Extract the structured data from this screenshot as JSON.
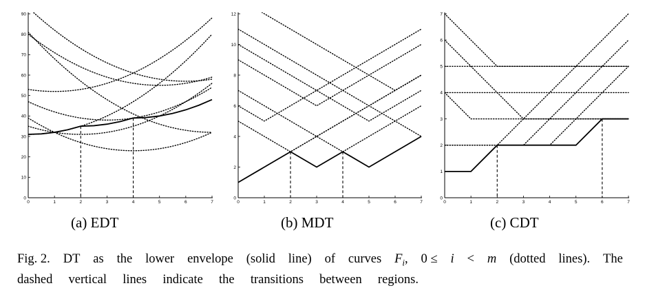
{
  "panels": [
    {
      "caption": "(a) EDT",
      "chart_data": {
        "type": "line",
        "title": "",
        "xlabel": "",
        "ylabel": "",
        "xlim": [
          0,
          7
        ],
        "ylim": [
          0,
          90
        ],
        "x_ticks": [
          0,
          1,
          2,
          3,
          4,
          5,
          6,
          7
        ],
        "y_ticks": [
          0,
          10,
          20,
          30,
          40,
          50,
          60,
          70,
          80,
          90
        ],
        "y_tick_labels": [
          "0",
          "10",
          "20",
          "30",
          "40",
          "50",
          "60",
          "70",
          "80",
          "90"
        ],
        "grid": false,
        "dotted_curves": [
          {
            "center": 0,
            "offset": 31
          },
          {
            "center": 1,
            "offset": 52
          },
          {
            "center": 2,
            "offset": 31
          },
          {
            "center": 3,
            "offset": 38
          },
          {
            "center": 4,
            "offset": 23
          },
          {
            "center": 5,
            "offset": 55
          },
          {
            "center": 6,
            "offset": 57
          },
          {
            "center": 7,
            "offset": 32
          }
        ],
        "envelope_x": [
          0,
          0.5,
          1,
          1.5,
          2,
          2.5,
          3,
          3.5,
          4,
          4.5,
          5,
          5.5,
          6,
          6.5,
          7
        ],
        "envelope_y": [
          31,
          31.25,
          32,
          33.25,
          35,
          35.25,
          36,
          37.25,
          39,
          39.25,
          40,
          41.25,
          43,
          45.25,
          48
        ],
        "transitions": [
          2,
          4
        ]
      }
    },
    {
      "caption": "(b) MDT",
      "chart_data": {
        "type": "line",
        "title": "",
        "xlabel": "",
        "ylabel": "",
        "xlim": [
          0,
          7
        ],
        "ylim": [
          0,
          12
        ],
        "x_ticks": [
          0,
          1,
          2,
          3,
          4,
          5,
          6,
          7
        ],
        "y_ticks": [
          0,
          2,
          4,
          6,
          8,
          10,
          12
        ],
        "y_tick_labels": [
          "0",
          "2",
          "4",
          "6",
          "8",
          "10",
          "12"
        ],
        "grid": false,
        "dotted_curves": [
          {
            "center": 0,
            "offset": 1
          },
          {
            "center": 1,
            "offset": 5
          },
          {
            "center": 2,
            "offset": 3
          },
          {
            "center": 3,
            "offset": 6
          },
          {
            "center": 4,
            "offset": 3
          },
          {
            "center": 5,
            "offset": 5
          },
          {
            "center": 6,
            "offset": 7
          },
          {
            "center": 7,
            "offset": 4
          }
        ],
        "envelope_x": [
          0,
          2,
          3,
          4,
          5,
          7
        ],
        "envelope_y": [
          1,
          3,
          2,
          3,
          2,
          4
        ],
        "transitions": [
          2,
          4
        ]
      }
    },
    {
      "caption": "(c) CDT",
      "chart_data": {
        "type": "line",
        "title": "",
        "xlabel": "",
        "ylabel": "",
        "xlim": [
          0,
          7
        ],
        "ylim": [
          0,
          7
        ],
        "x_ticks": [
          0,
          1,
          2,
          3,
          4,
          5,
          6,
          7
        ],
        "y_ticks": [
          0,
          1,
          2,
          3,
          4,
          5,
          6,
          7
        ],
        "y_tick_labels": [
          "0",
          "1",
          "2",
          "3",
          "4",
          "5",
          "6",
          "7"
        ],
        "grid": false,
        "dotted_curves": [
          {
            "center": 0,
            "offset": 1
          },
          {
            "center": 1,
            "offset": 2
          },
          {
            "center": 2,
            "offset": 2
          },
          {
            "center": 3,
            "offset": 4
          },
          {
            "center": 4,
            "offset": 3
          },
          {
            "center": 5,
            "offset": 5
          },
          {
            "center": 6,
            "offset": 3
          },
          {
            "center": 7,
            "offset": 5
          }
        ],
        "envelope_x": [
          0,
          1,
          2,
          5,
          6,
          7
        ],
        "envelope_y": [
          1,
          1,
          2,
          2,
          3,
          3
        ],
        "transitions": [
          2,
          6
        ]
      }
    }
  ],
  "caption": {
    "line1_words": [
      "Fig. 2.",
      "DT",
      "as",
      "the",
      "lower",
      "envelope",
      "(solid",
      "line)",
      "of",
      "curves",
      "F",
      "i",
      ",",
      "0 ≤",
      "i",
      "<",
      "m",
      "(dotted",
      "lines).",
      "The"
    ],
    "line2_words": [
      "dashed",
      "vertical",
      "lines",
      "indicate",
      "the",
      "transitions",
      "between",
      "regions."
    ]
  }
}
